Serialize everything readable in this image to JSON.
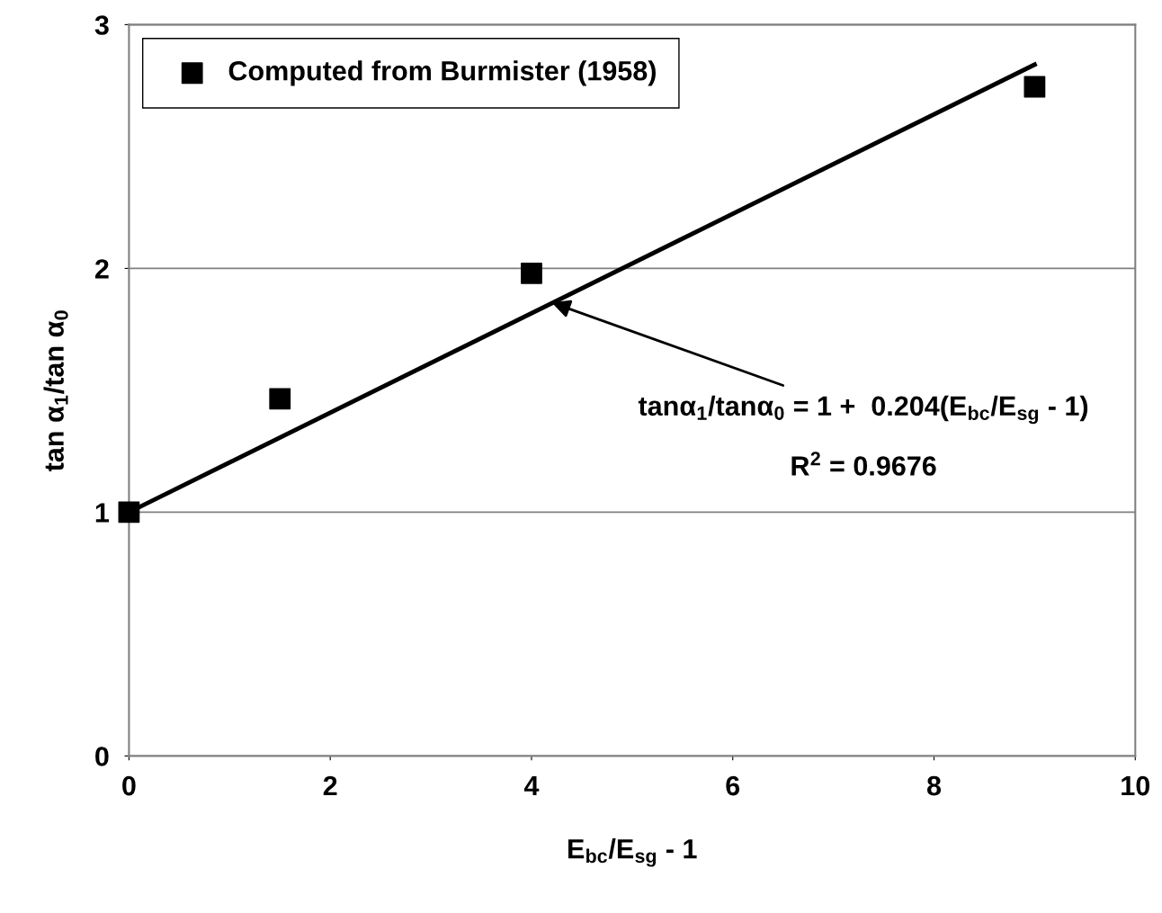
{
  "chart_data": {
    "type": "scatter",
    "xlabel": "E$_{bc}$/E$_{sg}$ - 1",
    "ylabel": "tan α$_{1}$/tan α$_{0}$",
    "xlim": [
      0,
      10
    ],
    "xticks": [
      0,
      2,
      4,
      6,
      8,
      10
    ],
    "ylim": [
      0,
      3
    ],
    "yticks": [
      0,
      1,
      2,
      3
    ],
    "grid": "y",
    "legend": "top left",
    "series": [
      {
        "name": "Computed from Burmister (1958)",
        "marker": "square",
        "color": "#000000",
        "x": [
          0,
          1.5,
          4,
          9
        ],
        "values": [
          1,
          1.465,
          1.98,
          2.745
        ]
      },
      {
        "type": "line",
        "marker": "none",
        "color": "#000000",
        "x": [
          0,
          9
        ],
        "values": [
          1,
          2.836
        ]
      }
    ],
    "annotations": [
      "tanα$_{1}$/tanα$_{0}$ = 1 +  0.204(E$_{bc}$/E$_{sg}$ - 1)",
      "R$^{2}$ = 0.9676"
    ]
  }
}
